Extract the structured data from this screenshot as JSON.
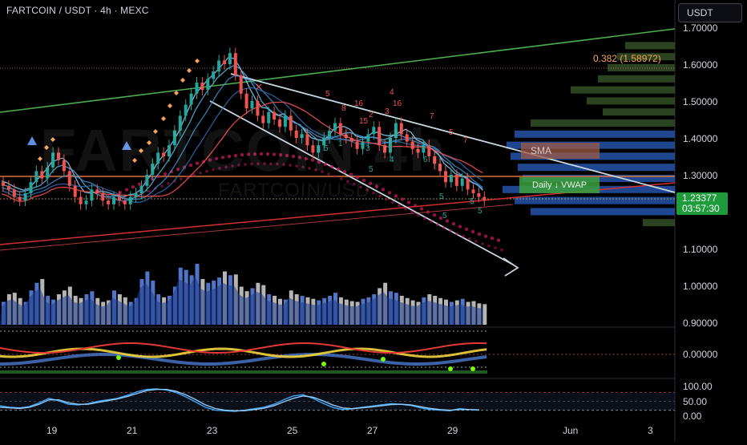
{
  "header": {
    "title": "FARTCOIN / USDT · 4h · MEXC",
    "currency_button": "USDT"
  },
  "watermark": {
    "symbol": "FARTCOIN",
    "timeframe": "4h",
    "subtitle": "FARTCOIN/USDT"
  },
  "colors": {
    "background": "#000000",
    "up_candle": "#26a69a",
    "down_candle": "#ef5350",
    "volume_up": "#4f74c9",
    "volume_down": "#b5b5b5",
    "trend_green": "#4caf50",
    "trend_white": "#c8d6e0",
    "price_tag": "#1e9b3a",
    "fib": "#f7a35c"
  },
  "chart_data": [
    {
      "type": "candlestick",
      "title": "FARTCOIN / USDT · 4h · MEXC",
      "x_ticks": [
        "19",
        "21",
        "23",
        "25",
        "27",
        "29",
        "Jun",
        "3"
      ],
      "y_ticks": [
        "1.70000",
        "1.60000",
        "1.50000",
        "1.40000",
        "1.30000",
        "1.10000",
        "1.00000",
        "0.90000"
      ],
      "ylim": [
        0.88,
        1.75
      ],
      "last_price": "1.23377",
      "countdown": "03:57:30",
      "annotations": {
        "fib_level": "0.382 (1.58972)",
        "sma_label": "SMA",
        "vwap_label": "Daily ↓ VWAP"
      },
      "closes": [
        1.27,
        1.26,
        1.24,
        1.23,
        1.25,
        1.28,
        1.31,
        1.29,
        1.32,
        1.36,
        1.34,
        1.31,
        1.27,
        1.24,
        1.22,
        1.23,
        1.26,
        1.25,
        1.23,
        1.22,
        1.24,
        1.23,
        1.22,
        1.24,
        1.25,
        1.27,
        1.3,
        1.33,
        1.36,
        1.35,
        1.38,
        1.42,
        1.46,
        1.49,
        1.52,
        1.55,
        1.53,
        1.56,
        1.58,
        1.61,
        1.6,
        1.63,
        1.57,
        1.52,
        1.48,
        1.5,
        1.46,
        1.44,
        1.47,
        1.45,
        1.43,
        1.46,
        1.42,
        1.4,
        1.41,
        1.38,
        1.36,
        1.38,
        1.4,
        1.42,
        1.44,
        1.41,
        1.4,
        1.39,
        1.37,
        1.39,
        1.41,
        1.43,
        1.38,
        1.36,
        1.4,
        1.44,
        1.41,
        1.39,
        1.37,
        1.36,
        1.38,
        1.35,
        1.33,
        1.31,
        1.28,
        1.3,
        1.27,
        1.29,
        1.26,
        1.25,
        1.24,
        1.23
      ],
      "volume_pct": [
        30,
        40,
        42,
        35,
        30,
        45,
        55,
        60,
        38,
        33,
        40,
        45,
        50,
        38,
        35,
        40,
        44,
        35,
        30,
        32,
        45,
        40,
        36,
        30,
        35,
        60,
        70,
        58,
        40,
        36,
        38,
        50,
        75,
        72,
        65,
        80,
        60,
        55,
        58,
        62,
        70,
        65,
        66,
        50,
        44,
        48,
        55,
        52,
        40,
        38,
        34,
        33,
        45,
        40,
        38,
        36,
        34,
        32,
        35,
        38,
        42,
        36,
        33,
        31,
        30,
        34,
        36,
        40,
        48,
        55,
        44,
        42,
        38,
        35,
        32,
        30,
        36,
        40,
        38,
        35,
        33,
        30,
        32,
        34,
        30,
        31,
        28,
        27
      ]
    },
    {
      "type": "line",
      "title": "",
      "y_ticks": [
        "0.00000"
      ]
    },
    {
      "type": "line",
      "title": "",
      "y_ticks": [
        "100.00",
        "50.00",
        "0.00"
      ],
      "ylim": [
        0,
        100
      ],
      "series": [
        {
          "values": [
            35,
            30,
            28,
            32,
            45,
            60,
            52,
            40,
            38,
            42,
            50,
            55,
            60,
            70,
            82,
            90,
            92,
            88,
            80,
            65,
            48,
            30,
            20,
            18,
            16,
            20,
            25,
            30,
            40,
            55,
            68,
            72,
            60,
            44,
            30,
            22,
            25,
            30,
            34,
            38,
            42,
            40,
            36,
            28,
            22,
            20,
            18,
            25,
            22,
            20
          ]
        },
        {
          "values": [
            30,
            28,
            26,
            30,
            40,
            55,
            55,
            45,
            40,
            40,
            46,
            52,
            58,
            66,
            76,
            86,
            90,
            90,
            84,
            72,
            56,
            38,
            26,
            20,
            18,
            18,
            22,
            27,
            35,
            48,
            60,
            68,
            64,
            52,
            38,
            28,
            25,
            28,
            31,
            35,
            39,
            40,
            38,
            32,
            26,
            22,
            20,
            22,
            22,
            21
          ]
        }
      ]
    }
  ],
  "axis": {
    "prices": [
      "1.70000",
      "1.60000",
      "1.50000",
      "1.40000",
      "1.30000",
      "1.10000",
      "1.00000",
      "0.90000"
    ],
    "dates": [
      "19",
      "21",
      "23",
      "25",
      "27",
      "29",
      "Jun",
      "3"
    ],
    "osc1": [
      "0.00000"
    ],
    "osc2": [
      "100.00",
      "50.00",
      "0.00"
    ]
  },
  "price_tag": {
    "price": "1.23377",
    "countdown": "03:57:30"
  },
  "fib": {
    "label": "0.382 (1.58972)"
  },
  "labels": {
    "sma": "SMA",
    "vwap": "Daily ↓ VWAP"
  },
  "signal_numbers": [
    "5",
    "7",
    "16",
    "8",
    "4",
    "3",
    "2",
    "15",
    "16",
    "7",
    "5",
    "5",
    "1",
    "5",
    "3",
    "5",
    "4",
    "5",
    "6",
    "5",
    "5"
  ]
}
